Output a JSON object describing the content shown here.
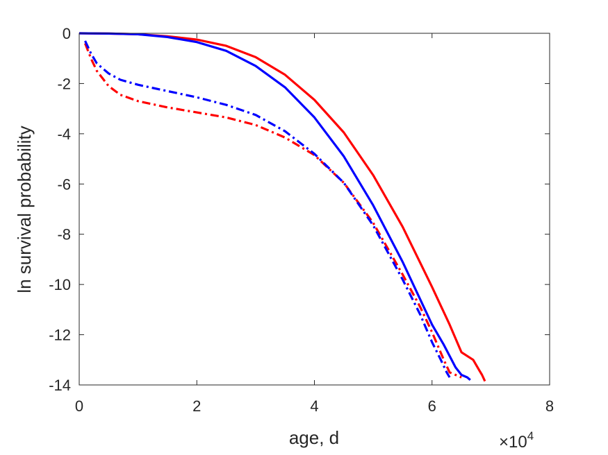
{
  "chart_data": {
    "type": "line",
    "title": "",
    "xlabel": "age, d",
    "ylabel": "ln survival probability",
    "x_multiplier": {
      "base": "10",
      "exponent": "4",
      "symbol": "×"
    },
    "xlim": [
      0,
      80000
    ],
    "ylim": [
      -14,
      0
    ],
    "x_ticks": [
      0,
      20000,
      40000,
      60000,
      80000
    ],
    "x_tick_labels": [
      "0",
      "2",
      "4",
      "6",
      "8"
    ],
    "y_ticks": [
      0,
      -2,
      -4,
      -6,
      -8,
      -10,
      -12,
      -14
    ],
    "y_tick_labels": [
      "0",
      "-2",
      "-4",
      "-6",
      "-8",
      "-10",
      "-12",
      "-14"
    ],
    "grid": false,
    "legend": "none",
    "series": [
      {
        "color": "#ff0000",
        "style": "solid",
        "x": [
          0,
          5000,
          10000,
          15000,
          20000,
          25000,
          30000,
          35000,
          40000,
          45000,
          50000,
          55000,
          60000,
          63000,
          65000,
          67000,
          68000,
          68500,
          69000
        ],
        "y": [
          0,
          -0.01,
          -0.04,
          -0.12,
          -0.25,
          -0.5,
          -0.95,
          -1.65,
          -2.65,
          -3.95,
          -5.65,
          -7.7,
          -10.1,
          -11.6,
          -12.7,
          -13.0,
          -13.4,
          -13.6,
          -13.85
        ]
      },
      {
        "color": "#0000ff",
        "style": "solid",
        "x": [
          0,
          5000,
          10000,
          15000,
          20000,
          25000,
          30000,
          35000,
          40000,
          45000,
          50000,
          55000,
          60000,
          62000,
          64000,
          65000,
          66000,
          66500
        ],
        "y": [
          0,
          -0.01,
          -0.04,
          -0.15,
          -0.35,
          -0.7,
          -1.3,
          -2.15,
          -3.35,
          -4.9,
          -6.85,
          -9.1,
          -11.6,
          -12.4,
          -13.3,
          -13.6,
          -13.7,
          -13.8
        ]
      },
      {
        "color": "#ff0000",
        "style": "dashdot",
        "x": [
          1000,
          2000,
          3000,
          5000,
          7000,
          10000,
          15000,
          20000,
          25000,
          30000,
          35000,
          40000,
          45000,
          50000,
          55000,
          58000,
          60000,
          62000,
          63000,
          64000,
          65000
        ],
        "y": [
          -0.4,
          -1.0,
          -1.5,
          -2.1,
          -2.45,
          -2.7,
          -2.95,
          -3.15,
          -3.35,
          -3.65,
          -4.15,
          -4.85,
          -5.95,
          -7.55,
          -9.6,
          -10.9,
          -11.9,
          -13.0,
          -13.5,
          -13.6,
          -13.7
        ]
      },
      {
        "color": "#0000ff",
        "style": "dashdot",
        "x": [
          1000,
          2000,
          3000,
          5000,
          7000,
          10000,
          15000,
          20000,
          25000,
          30000,
          35000,
          40000,
          45000,
          50000,
          55000,
          58000,
          60000,
          61500,
          62500,
          63000
        ],
        "y": [
          -0.3,
          -0.8,
          -1.2,
          -1.6,
          -1.85,
          -2.05,
          -2.3,
          -2.55,
          -2.85,
          -3.25,
          -3.9,
          -4.8,
          -5.95,
          -7.65,
          -9.8,
          -11.2,
          -12.3,
          -13.0,
          -13.5,
          -13.7
        ]
      }
    ]
  }
}
